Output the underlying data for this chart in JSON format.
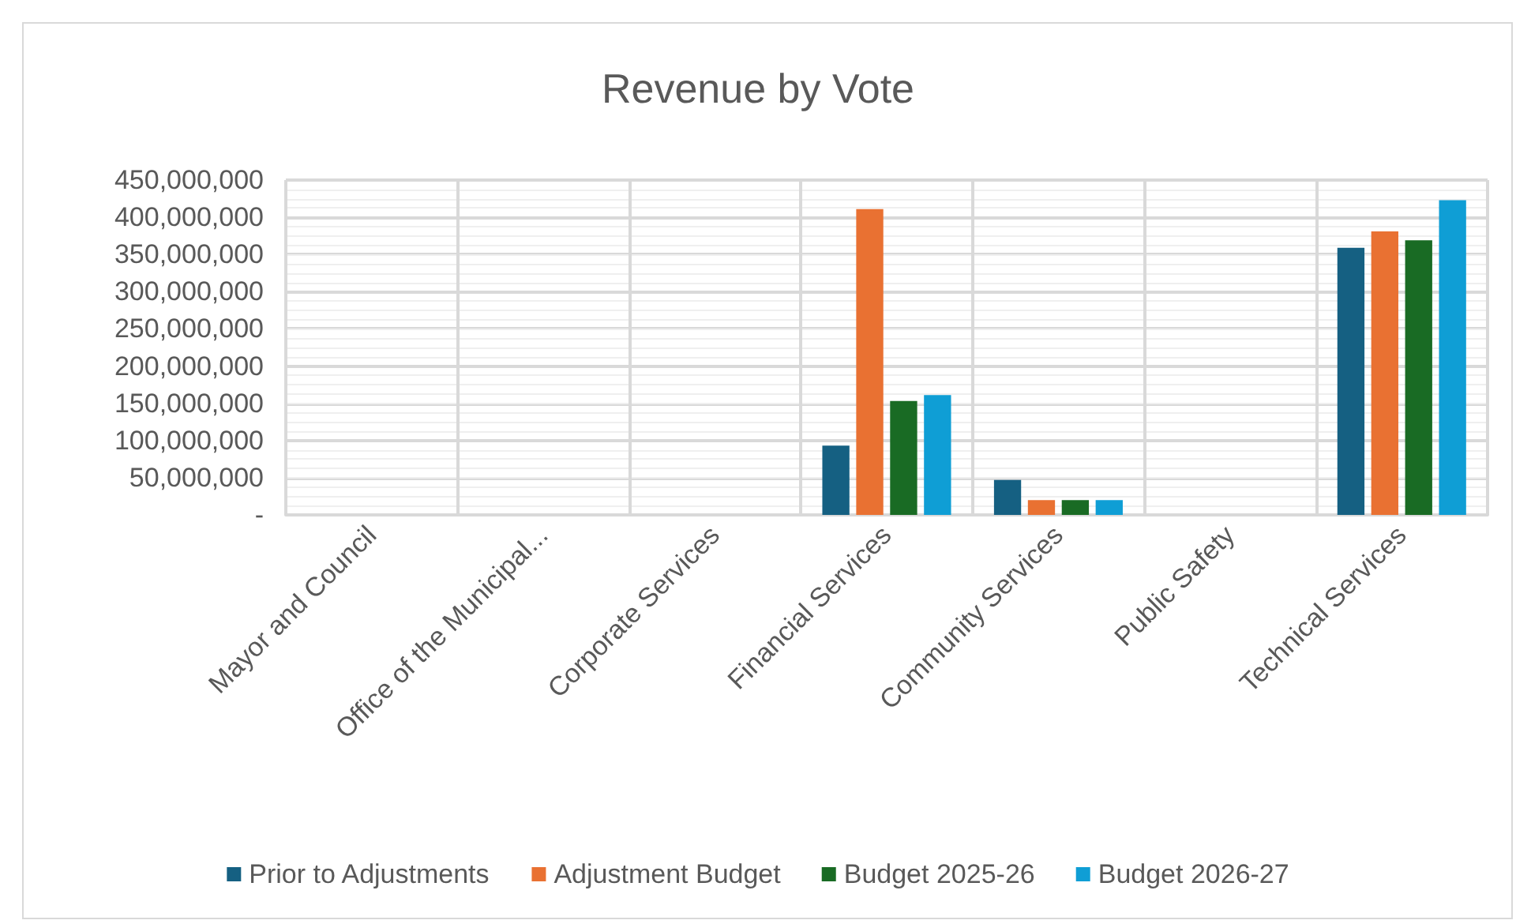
{
  "chart_data": {
    "type": "bar",
    "title": "Revenue by Vote",
    "categories": [
      "Mayor and Council",
      "Office of the Municipal...",
      "Corporate Services",
      "Financial Services",
      "Community Services",
      "Public Safety",
      "Technical Services"
    ],
    "series": [
      {
        "name": "Prior to Adjustments",
        "color": "#156082",
        "values": [
          0,
          0,
          0,
          93000000,
          47000000,
          0,
          359000000
        ]
      },
      {
        "name": "Adjustment Budget",
        "color": "#e97132",
        "values": [
          0,
          0,
          0,
          411000000,
          20000000,
          0,
          381000000
        ]
      },
      {
        "name": "Budget 2025-26",
        "color": "#196b24",
        "values": [
          0,
          0,
          0,
          153000000,
          20000000,
          0,
          369000000
        ]
      },
      {
        "name": "Budget 2026-27",
        "color": "#0f9ed5",
        "values": [
          0,
          0,
          0,
          161000000,
          20000000,
          0,
          423000000
        ]
      }
    ],
    "ylim": [
      0,
      450000000
    ],
    "yticks": [
      {
        "value": 0,
        "label": "-"
      },
      {
        "value": 50000000,
        "label": "50,000,000"
      },
      {
        "value": 100000000,
        "label": "100,000,000"
      },
      {
        "value": 150000000,
        "label": "150,000,000"
      },
      {
        "value": 200000000,
        "label": "200,000,000"
      },
      {
        "value": 250000000,
        "label": "250,000,000"
      },
      {
        "value": 300000000,
        "label": "300,000,000"
      },
      {
        "value": 350000000,
        "label": "350,000,000"
      },
      {
        "value": 400000000,
        "label": "400,000,000"
      },
      {
        "value": 450000000,
        "label": "450,000,000"
      }
    ],
    "grid": true,
    "legend": "bottom"
  }
}
